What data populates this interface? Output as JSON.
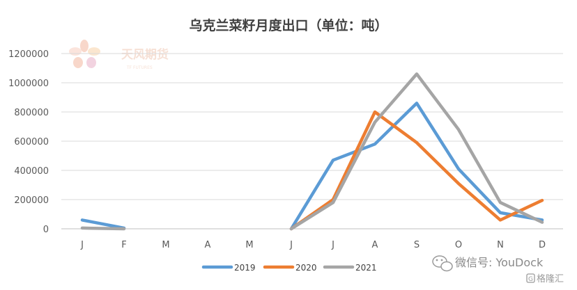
{
  "chart_data": {
    "type": "line",
    "title": "乌克兰菜籽月度出口（单位：吨）",
    "xlabel": "",
    "ylabel": "",
    "categories": [
      "J",
      "F",
      "M",
      "A",
      "M",
      "J",
      "J",
      "A",
      "S",
      "O",
      "N",
      "D"
    ],
    "y_ticks": [
      "0",
      "200000",
      "400000",
      "600000",
      "800000",
      "1000000",
      "1200000"
    ],
    "ylim": [
      0,
      1200000
    ],
    "grid": true,
    "legend_position": "bottom",
    "series": [
      {
        "name": "2019",
        "color": "#5b9bd5",
        "values": [
          60000,
          5000,
          null,
          null,
          null,
          0,
          470000,
          580000,
          860000,
          410000,
          110000,
          60000
        ]
      },
      {
        "name": "2020",
        "color": "#ed7d31",
        "values": [
          null,
          null,
          null,
          null,
          null,
          0,
          200000,
          800000,
          590000,
          310000,
          60000,
          195000
        ]
      },
      {
        "name": "2021",
        "color": "#a5a5a5",
        "values": [
          5000,
          0,
          null,
          null,
          null,
          0,
          180000,
          730000,
          1060000,
          680000,
          180000,
          45000
        ]
      }
    ]
  },
  "watermark": {
    "logo_text": "天风期货",
    "logo_sub": "TF FUTURES",
    "wechat_label": "微信号: YouDock",
    "brand": "格隆汇"
  }
}
